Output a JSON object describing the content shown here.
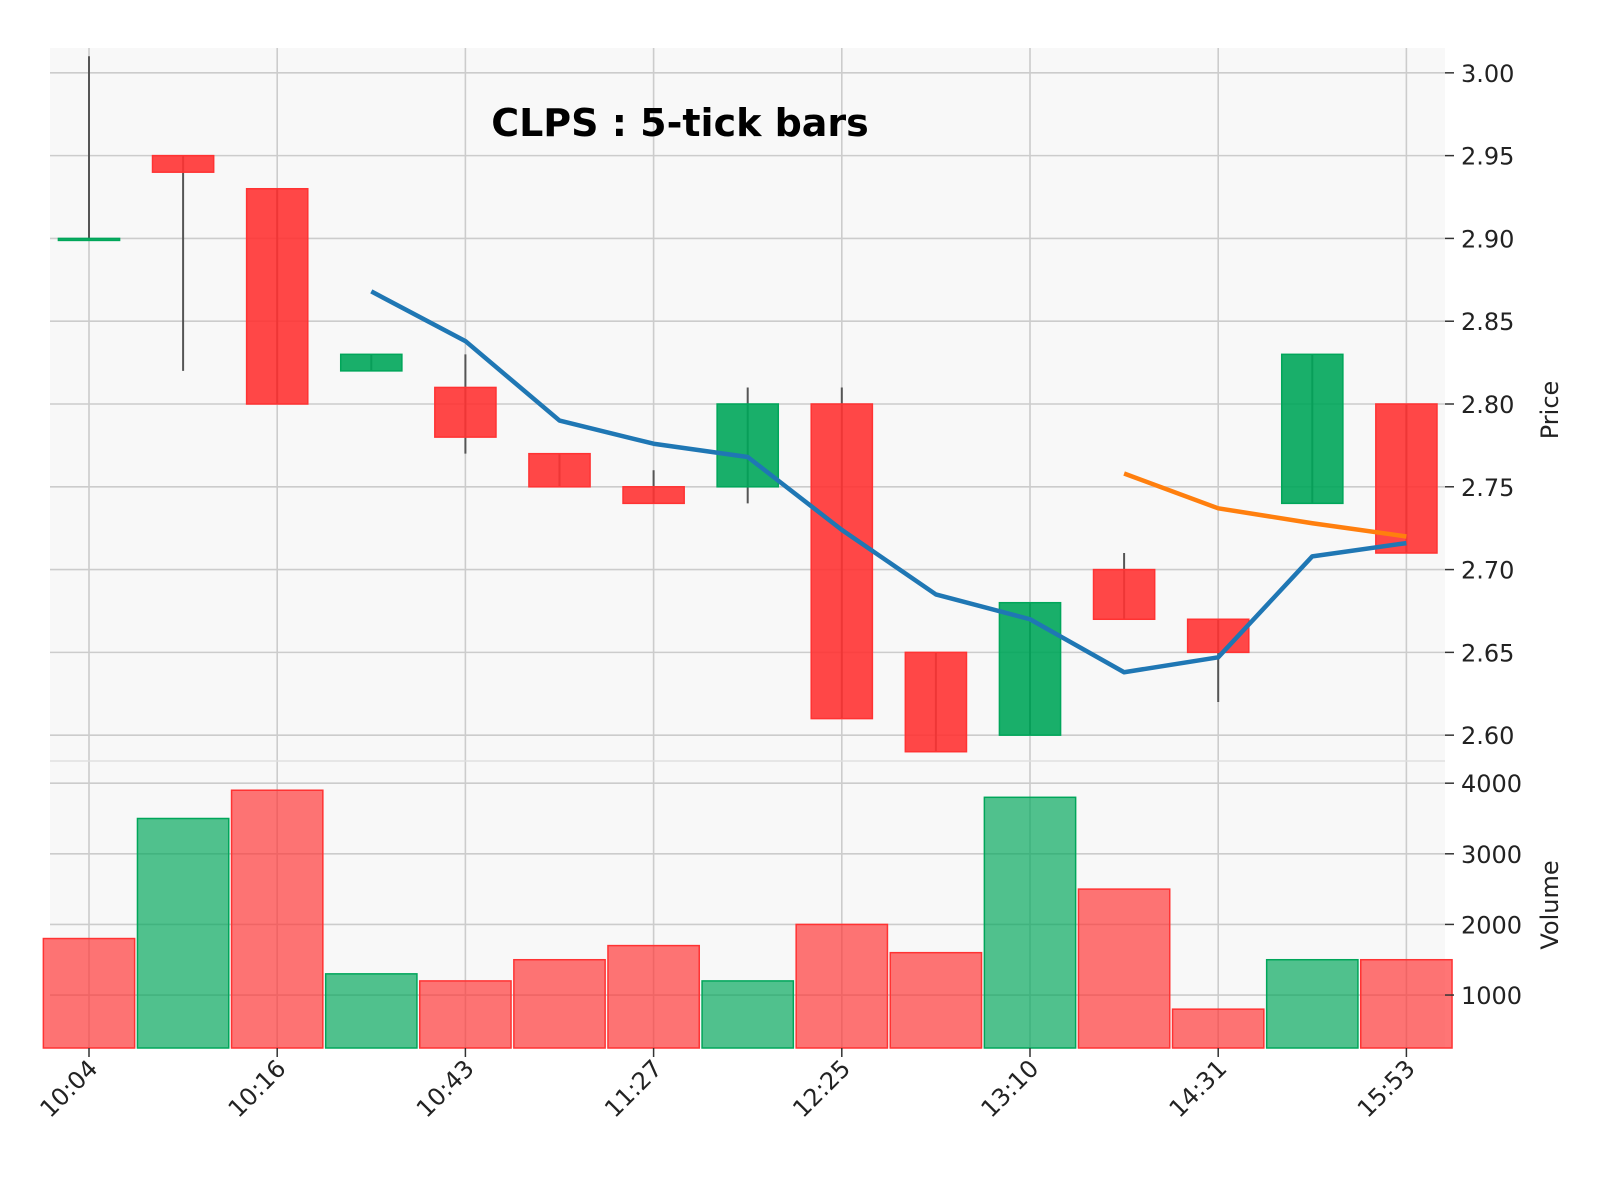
{
  "chart_data": {
    "type": "candlestick",
    "title": "CLPS : 5-tick bars",
    "price_axis": {
      "label": "Price",
      "ticks": [
        "3.00",
        "2.95",
        "2.90",
        "2.85",
        "2.80",
        "2.75",
        "2.70",
        "2.65",
        "2.60"
      ],
      "ylim": [
        2.585,
        3.015
      ]
    },
    "volume_axis": {
      "label": "Volume",
      "ticks": [
        "4000",
        "3000",
        "2000",
        "1000"
      ],
      "ylim": [
        250,
        4300
      ]
    },
    "x_tick_labels": [
      "10:04",
      "10:16",
      "10:43",
      "11:27",
      "12:25",
      "13:10",
      "14:31",
      "15:53"
    ],
    "x_tick_indices": [
      0,
      2,
      4,
      6,
      8,
      10,
      12,
      14
    ],
    "candles": [
      {
        "open": 2.9,
        "high": 3.01,
        "low": 2.9,
        "close": 2.9,
        "volume": 1800
      },
      {
        "open": 2.95,
        "high": 2.95,
        "low": 2.82,
        "close": 2.94,
        "volume": 3500
      },
      {
        "open": 2.93,
        "high": 2.93,
        "low": 2.8,
        "close": 2.8,
        "volume": 3900
      },
      {
        "open": 2.82,
        "high": 2.83,
        "low": 2.82,
        "close": 2.83,
        "volume": 1300
      },
      {
        "open": 2.81,
        "high": 2.83,
        "low": 2.77,
        "close": 2.78,
        "volume": 1200
      },
      {
        "open": 2.77,
        "high": 2.77,
        "low": 2.75,
        "close": 2.75,
        "volume": 1500
      },
      {
        "open": 2.75,
        "high": 2.76,
        "low": 2.74,
        "close": 2.74,
        "volume": 1700
      },
      {
        "open": 2.75,
        "high": 2.81,
        "low": 2.74,
        "close": 2.8,
        "volume": 1200
      },
      {
        "open": 2.8,
        "high": 2.81,
        "low": 2.61,
        "close": 2.61,
        "volume": 2000
      },
      {
        "open": 2.65,
        "high": 2.65,
        "low": 2.59,
        "close": 2.59,
        "volume": 1600
      },
      {
        "open": 2.6,
        "high": 2.68,
        "low": 2.6,
        "close": 2.68,
        "volume": 3800
      },
      {
        "open": 2.7,
        "high": 2.71,
        "low": 2.67,
        "close": 2.67,
        "volume": 2500
      },
      {
        "open": 2.67,
        "high": 2.67,
        "low": 2.62,
        "close": 2.65,
        "volume": 800
      },
      {
        "open": 2.74,
        "high": 2.83,
        "low": 2.74,
        "close": 2.83,
        "volume": 1500
      },
      {
        "open": 2.8,
        "high": 2.8,
        "low": 2.71,
        "close": 2.71,
        "volume": 1500
      }
    ],
    "volume_colors": [
      "down",
      "up",
      "down",
      "up",
      "down",
      "down",
      "down",
      "up",
      "down",
      "down",
      "up",
      "down",
      "down",
      "up",
      "down"
    ],
    "moving_averages": [
      {
        "color": "#1f77b4",
        "start_index": 3,
        "values": [
          2.868,
          2.838,
          2.79,
          2.776,
          2.768,
          2.724,
          2.685,
          2.67,
          2.638,
          2.647,
          2.708,
          2.716
        ]
      },
      {
        "color": "#ff7f0e",
        "start_index": 11,
        "values": [
          2.758,
          2.737,
          2.728,
          2.72
        ]
      }
    ],
    "colors": {
      "up": "#00a65a",
      "down": "#ff3333",
      "wick": "#555555",
      "grid": "#cccccc",
      "background": "#f8f8f8"
    },
    "grid": true
  }
}
